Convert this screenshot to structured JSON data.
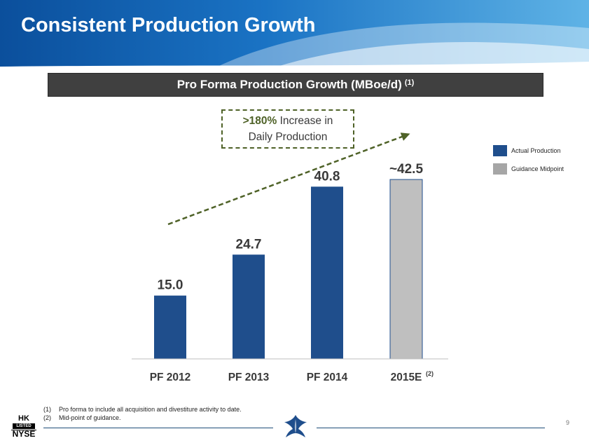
{
  "slide": {
    "title": "Consistent Production Growth",
    "page_number": "9"
  },
  "chart_header": {
    "title": "Pro Forma Production Growth (MBoe/d)",
    "title_note": "(1)"
  },
  "callout": {
    "highlight": ">180%",
    "line1_rest": " Increase in",
    "line2": "Daily Production"
  },
  "legend": {
    "items": [
      {
        "label": "Actual Production",
        "color": "#1f4e8c"
      },
      {
        "label": "Guidance Midpoint",
        "color": "#a6a6a6"
      }
    ]
  },
  "chart_data": {
    "type": "bar",
    "title": "Pro Forma Production Growth (MBoe/d)",
    "categories": [
      "PF 2012",
      "PF 2013",
      "PF 2014",
      "2015E"
    ],
    "category_notes": [
      "",
      "",
      "",
      "(2)"
    ],
    "values": [
      15.0,
      24.7,
      40.8,
      42.5
    ],
    "data_labels": [
      "15.0",
      "24.7",
      "40.8",
      "~42.5"
    ],
    "series_kind": [
      "Actual Production",
      "Actual Production",
      "Actual Production",
      "Guidance Midpoint"
    ],
    "colors": {
      "actual": "#1f4e8c",
      "guidance": "#bfbfbf",
      "guidance_border": "#1f4e8c",
      "trend": "#4f6228"
    },
    "ylim": [
      0,
      45
    ],
    "grid": false,
    "legend_position": "right"
  },
  "footnotes": [
    {
      "num": "(1)",
      "text": "Pro forma to include all acquisition and divestiture activity to date."
    },
    {
      "num": "(2)",
      "text": "Mid-point of guidance."
    }
  ],
  "exchange_logo": {
    "top": "HK",
    "middle": "LISTED",
    "bottom": "NYSE"
  }
}
